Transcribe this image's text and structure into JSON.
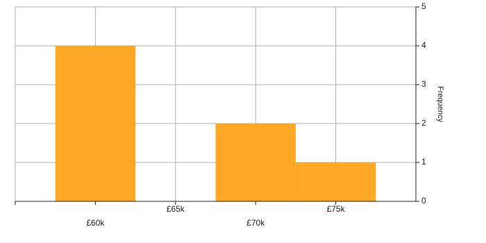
{
  "chart_data": {
    "type": "histogram",
    "bins": [
      57500,
      62500,
      67500,
      72500,
      77500
    ],
    "values": [
      4,
      0,
      2,
      1
    ],
    "color": "#ffa31a",
    "xlim": [
      55000,
      80000
    ],
    "xticks": [
      {
        "value": 60000,
        "label": "£60k"
      },
      {
        "value": 65000,
        "label": "£65k"
      },
      {
        "value": 70000,
        "label": "£70k"
      },
      {
        "value": 75000,
        "label": "£75k"
      }
    ],
    "ylim": [
      0,
      5
    ],
    "yticks": [
      0,
      1,
      2,
      3,
      4,
      5
    ],
    "ylabel": "Frequency",
    "grid": true
  }
}
